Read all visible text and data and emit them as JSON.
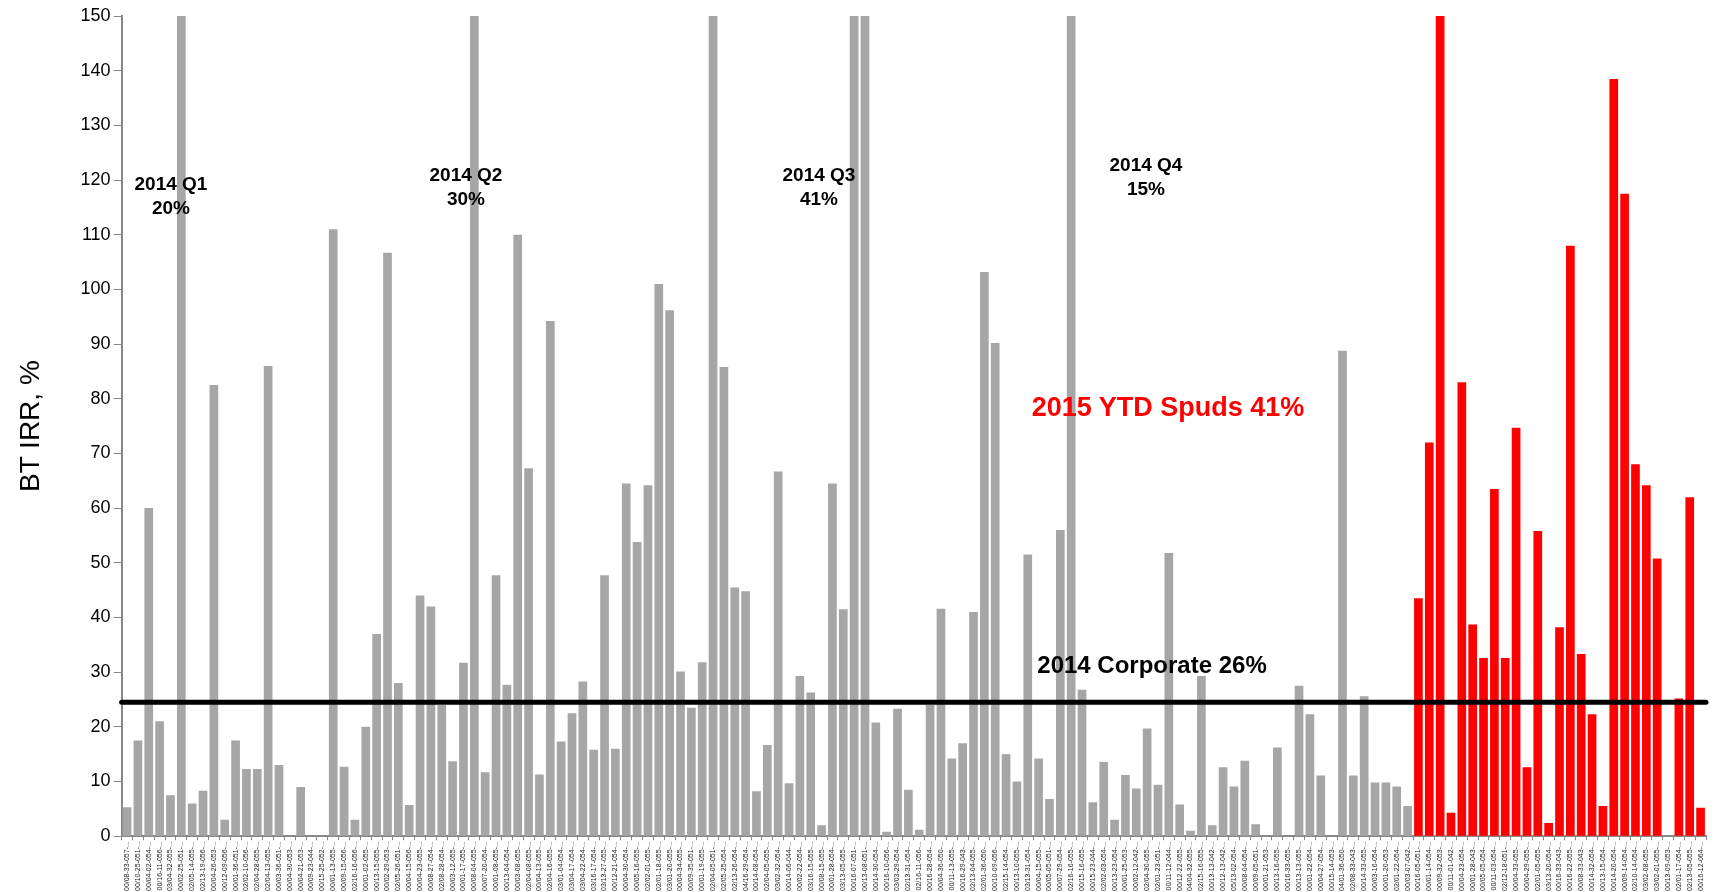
{
  "chart_data": {
    "type": "bar",
    "ylabel": "BT IRR, %",
    "categories": [
      "00/08-33-057-...",
      "00/10-25-051-...",
      "00/04-02-054-...",
      "00/16-11-056-...",
      "03/04-32-055-...",
      "00/02-25-051-...",
      "02/05-14-055-...",
      "02/13-19-056-...",
      "00/04-26-053-...",
      "00/12-09-056-...",
      "00/01-36-051-...",
      "02/02-10-056-...",
      "02/04-28-055-...",
      "02/04-13-055-...",
      "00/03-36-051-...",
      "00/04-30-053-...",
      "00/04-21-053-...",
      "00/09-23-044-...",
      "00/15-25-052-...",
      "00/01-13-055-...",
      "00/09-15-056-...",
      "02/16-16-056-...",
      "00/01-02-055-...",
      "00/13-15-055-...",
      "00/02-29-053-...",
      "02/05-26-051-...",
      "00/04-15-056-...",
      "00/04-23-055-...",
      "00/08-27-054-...",
      "02/08-28-054-...",
      "00/03-12-055-...",
      "00/01-17-055-...",
      "00/08-04-055-...",
      "00/07-20-054-...",
      "00/01-08-055-...",
      "00/13-04-054-...",
      "00/03-08-055-...",
      "02/04-08-055-...",
      "00/04-13-055-...",
      "02/04-16-055-...",
      "03/01-04-054-...",
      "03/04-17-054-...",
      "03/04-22-054-...",
      "03/16-17-054-...",
      "03/13-27-055-...",
      "00/12-21-054-...",
      "00/04-30-054-...",
      "00/05-16-055-...",
      "02/02-01-055-...",
      "02/01-18-055-...",
      "03/01-20-055-...",
      "00/04-34-055-...",
      "00/09-35-051-...",
      "00/01-19-055-...",
      "02/04-05-051-...",
      "02/05-25-054-...",
      "02/13-26-054-...",
      "04/16-29-054-...",
      "00/14-08-054-...",
      "02/04-05-055-...",
      "03/02-32-054-...",
      "00/14-06-044-...",
      "00/02-22-054-...",
      "03/16-15-055-...",
      "00/08-15-055-...",
      "00/01-28-054-...",
      "03/13-05-055-...",
      "00/16-07-051-...",
      "00/13-08-051-...",
      "00/14-30-054-...",
      "00/16-10-056-...",
      "03/03-29-054-...",
      "02/13-31-054-...",
      "02/16-11-056-...",
      "00/16-28-054-...",
      "00/04-36-050-...",
      "00/11-13-055-...",
      "00/16-29-043-...",
      "02/13-04-055-...",
      "02/01-36-050-...",
      "00/10-09-056-...",
      "02/15-14-054-...",
      "00/13-10-055-...",
      "03/13-31-054-...",
      "00/04-15-055-...",
      "00/05-05-051-...",
      "00/07-29-054-...",
      "02/16-16-055-...",
      "00/15-16-055-...",
      "00/15-23-044-...",
      "02/02-03-054-...",
      "00/13-23-054-...",
      "00/01-25-053-...",
      "00/02-12-042-...",
      "02/04-30-055-...",
      "02/01-23-051-...",
      "00/11-12-044-...",
      "00/12-22-055-...",
      "04/04-32-055-...",
      "02/15-16-055-...",
      "00/13-13-042-...",
      "00/12-13-042-...",
      "05/13-02-054-...",
      "00/08-04-054-...",
      "00/09-05-051-...",
      "00/01-21-053-...",
      "00/13-16-055-...",
      "00/16-33-055-...",
      "00/13-13-055-...",
      "00/01-22-054-...",
      "00/04-27-054-...",
      "00/15-14-053-...",
      "04/01-36-050-...",
      "02/08-33-043-...",
      "00/14-33-055-...",
      "00/03-16-054-...",
      "00/01-20-053-...",
      "02/01-22-054-...",
      "00/03-07-042-...",
      "00/16-05-051-...",
      "00/01-14-054-...",
      "00/09-32-053-...",
      "00/11-01-042-...",
      "00/04-23-054-...",
      "00/01-28-043-...",
      "00/05-05-054-...",
      "00/11-03-054-...",
      "02/12-18-051-...",
      "00/04-33-055-...",
      "00/04-29-055-...",
      "02/01-05-055-...",
      "03/13-20-054-...",
      "00/16-33-043-...",
      "00/16-22-055-...",
      "00/08-33-043-...",
      "00/14-32-054-...",
      "00/13-15-054-...",
      "00/14-20-054-...",
      "00/09-14-054-...",
      "02/10-14-054-...",
      "03/02-08-055-...",
      "03/02-01-055-...",
      "00/13-09-053-...",
      "02/01-17-054-...",
      "02/13-05-055-...",
      "00/16-12-064-..."
    ],
    "values": [
      5.3,
      17.5,
      60,
      21,
      7.5,
      150,
      6,
      8.3,
      82.5,
      3,
      17.5,
      12.3,
      12.3,
      86,
      13,
      0,
      9,
      0,
      0,
      111,
      12.7,
      3,
      20,
      37,
      106.7,
      28,
      5.7,
      44,
      42,
      24,
      13.7,
      31.7,
      150,
      11.7,
      47.7,
      27.7,
      110,
      67.3,
      11.3,
      94.2,
      17.3,
      22.5,
      28.3,
      15.8,
      47.7,
      16,
      64.5,
      53.8,
      64.2,
      101,
      96.2,
      30.1,
      23.5,
      31.8,
      150,
      85.8,
      45.5,
      44.8,
      8.2,
      16.7,
      66.7,
      9.7,
      29.3,
      26.3,
      2,
      64.5,
      41.5,
      150,
      150,
      20.8,
      0.8,
      23.3,
      8.5,
      1.2,
      24,
      41.6,
      14.2,
      17,
      41,
      103.2,
      90.2,
      15,
      10,
      51.5,
      14.2,
      6.8,
      56,
      150,
      26.8,
      6.2,
      13.6,
      3,
      11.2,
      8.7,
      19.7,
      9.4,
      51.8,
      5.8,
      1,
      29.3,
      2,
      12.6,
      9.1,
      13.8,
      2.2,
      0,
      16.2,
      0,
      27.5,
      22.3,
      11.1,
      0,
      88.8,
      11.1,
      25.6,
      9.8,
      9.8,
      9.1,
      5.5,
      43.5,
      72,
      150,
      4.3,
      83,
      38.7,
      32.6,
      63.5,
      32.6,
      74.7,
      12.6,
      55.8,
      2.4,
      38.2,
      108,
      33.3,
      22.3,
      5.5,
      138.5,
      117.5,
      68,
      64.2,
      50.8,
      0,
      25.2,
      62,
      5.2
    ],
    "colors": [
      "#a6a6a6",
      "#a6a6a6",
      "#a6a6a6",
      "#a6a6a6",
      "#a6a6a6",
      "#a6a6a6",
      "#a6a6a6",
      "#a6a6a6",
      "#a6a6a6",
      "#a6a6a6",
      "#a6a6a6",
      "#a6a6a6",
      "#a6a6a6",
      "#a6a6a6",
      "#a6a6a6",
      "#a6a6a6",
      "#a6a6a6",
      "#a6a6a6",
      "#a6a6a6",
      "#a6a6a6",
      "#a6a6a6",
      "#a6a6a6",
      "#a6a6a6",
      "#a6a6a6",
      "#a6a6a6",
      "#a6a6a6",
      "#a6a6a6",
      "#a6a6a6",
      "#a6a6a6",
      "#a6a6a6",
      "#a6a6a6",
      "#a6a6a6",
      "#a6a6a6",
      "#a6a6a6",
      "#a6a6a6",
      "#a6a6a6",
      "#a6a6a6",
      "#a6a6a6",
      "#a6a6a6",
      "#a6a6a6",
      "#a6a6a6",
      "#a6a6a6",
      "#a6a6a6",
      "#a6a6a6",
      "#a6a6a6",
      "#a6a6a6",
      "#a6a6a6",
      "#a6a6a6",
      "#a6a6a6",
      "#a6a6a6",
      "#a6a6a6",
      "#a6a6a6",
      "#a6a6a6",
      "#a6a6a6",
      "#a6a6a6",
      "#a6a6a6",
      "#a6a6a6",
      "#a6a6a6",
      "#a6a6a6",
      "#a6a6a6",
      "#a6a6a6",
      "#a6a6a6",
      "#a6a6a6",
      "#a6a6a6",
      "#a6a6a6",
      "#a6a6a6",
      "#a6a6a6",
      "#a6a6a6",
      "#a6a6a6",
      "#a6a6a6",
      "#a6a6a6",
      "#a6a6a6",
      "#a6a6a6",
      "#a6a6a6",
      "#a6a6a6",
      "#a6a6a6",
      "#a6a6a6",
      "#a6a6a6",
      "#a6a6a6",
      "#a6a6a6",
      "#a6a6a6",
      "#a6a6a6",
      "#a6a6a6",
      "#a6a6a6",
      "#a6a6a6",
      "#a6a6a6",
      "#a6a6a6",
      "#a6a6a6",
      "#a6a6a6",
      "#a6a6a6",
      "#a6a6a6",
      "#a6a6a6",
      "#a6a6a6",
      "#a6a6a6",
      "#a6a6a6",
      "#a6a6a6",
      "#a6a6a6",
      "#a6a6a6",
      "#a6a6a6",
      "#a6a6a6",
      "#a6a6a6",
      "#a6a6a6",
      "#a6a6a6",
      "#a6a6a6",
      "#a6a6a6",
      "#a6a6a6",
      "#a6a6a6",
      "#a6a6a6",
      "#a6a6a6",
      "#a6a6a6",
      "#a6a6a6",
      "#a6a6a6",
      "#a6a6a6",
      "#a6a6a6",
      "#a6a6a6",
      "#a6a6a6",
      "#a6a6a6",
      "#a6a6a6",
      "#a6a6a6",
      "#ff0000",
      "#ff0000",
      "#ff0000",
      "#ff0000",
      "#ff0000",
      "#ff0000",
      "#ff0000",
      "#ff0000",
      "#ff0000",
      "#ff0000",
      "#ff0000",
      "#ff0000",
      "#ff0000",
      "#ff0000",
      "#ff0000",
      "#ff0000",
      "#ff0000",
      "#ff0000",
      "#ff0000",
      "#ff0000",
      "#ff0000",
      "#ff0000",
      "#ff0000",
      "#ff0000",
      "#ff0000",
      "#ff0000",
      "#ff0000"
    ],
    "ylim": [
      0,
      150
    ],
    "yticks": [
      0,
      10,
      20,
      30,
      40,
      50,
      60,
      70,
      80,
      90,
      100,
      110,
      120,
      130,
      140,
      150
    ],
    "grid": false,
    "legend": false,
    "ref_lines": [
      {
        "axis": "y",
        "value": 24.5,
        "label": "2014 Corporate 26%",
        "color": "#000000"
      }
    ],
    "annotations": [
      "2014 Q1\n20%",
      "2014 Q2\n30%",
      "2014 Q3\n41%",
      "2014 Q4\n15%",
      "2015 YTD Spuds 41%"
    ]
  }
}
